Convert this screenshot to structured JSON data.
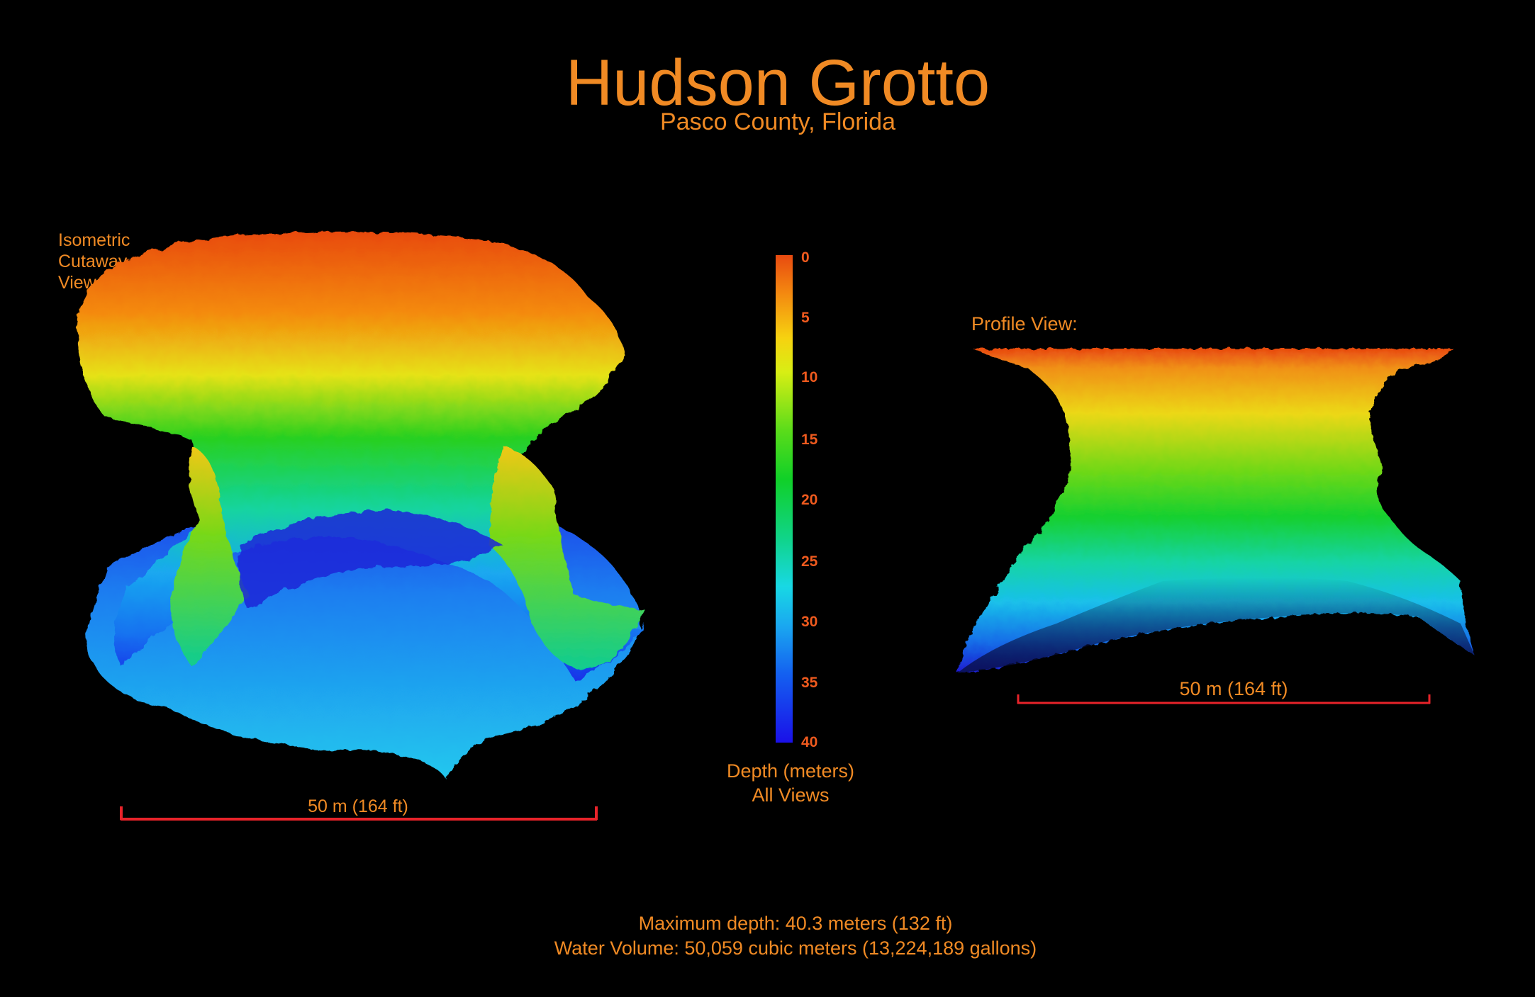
{
  "title": "Hudson Grotto",
  "subtitle": "Pasco County, Florida",
  "isometric_label": [
    "Isometric",
    "Cutaway",
    "View"
  ],
  "profile_label": "Profile View:",
  "colorbar": {
    "ticks": [
      "0",
      "5",
      "10",
      "15",
      "20",
      "25",
      "30",
      "35",
      "40"
    ],
    "caption_line1": "Depth (meters)",
    "caption_line2": "All Views",
    "colors": [
      "#e84a10",
      "#f6d210",
      "#10d028",
      "#18d8e4",
      "#1a10e8"
    ]
  },
  "scale_bars": {
    "isometric": "50 m (164 ft)",
    "profile": "50 m (164 ft)",
    "color": "#e8232a"
  },
  "footer": {
    "line1": "Maximum depth: 40.3 meters (132 ft)",
    "line2": "Water Volume: 50,059 cubic meters (13,224,189 gallons)"
  }
}
